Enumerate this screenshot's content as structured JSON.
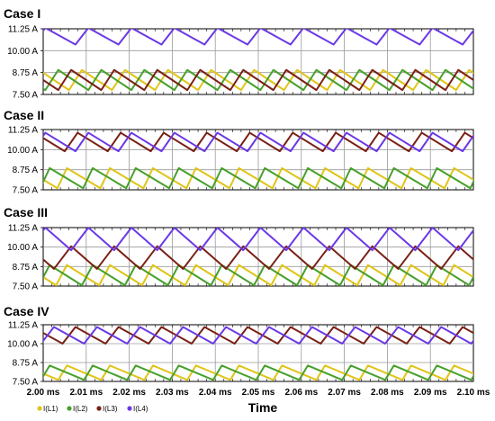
{
  "x_axis": {
    "label": "Time",
    "ticks": [
      "2.00 ms",
      "2.01 ms",
      "2.02 ms",
      "2.03 ms",
      "2.04 ms",
      "2.05 ms",
      "2.06 ms",
      "2.07 ms",
      "2.08 ms",
      "2.09 ms",
      "2.10 ms"
    ]
  },
  "legend": [
    {
      "label": "I(L1)",
      "color": "#e0c418"
    },
    {
      "label": "I(L2)",
      "color": "#46a02a"
    },
    {
      "label": "I(L3)",
      "color": "#7a1f14"
    },
    {
      "label": "I(L4)",
      "color": "#6a38e6"
    }
  ],
  "chart_data": [
    {
      "type": "line",
      "title": "Case I",
      "xlabel": "Time",
      "xunit": "ms",
      "xlim": [
        2.0,
        2.1
      ],
      "ylim": [
        7.5,
        11.25
      ],
      "yticks": [
        "11.25 A",
        "10.00 A",
        "8.75 A",
        "7.50 A"
      ],
      "ytick_values": [
        11.25,
        10.0,
        8.75,
        7.5
      ],
      "grid": true,
      "series": [
        {
          "name": "I(L1)",
          "color": "#e0c418",
          "period": 0.01,
          "min": 7.75,
          "max": 8.9,
          "peak_at": 0.009,
          "rise_frac": 0.3
        },
        {
          "name": "I(L2)",
          "color": "#46a02a",
          "period": 0.01,
          "min": 7.75,
          "max": 8.9,
          "peak_at": 0.0035,
          "rise_frac": 0.3
        },
        {
          "name": "I(L3)",
          "color": "#7a1f14",
          "period": 0.01,
          "min": 7.75,
          "max": 8.9,
          "peak_at": 0.0065,
          "rise_frac": 0.3
        },
        {
          "name": "I(L4)",
          "color": "#6a38e6",
          "period": 0.01,
          "min": 10.35,
          "max": 11.3,
          "peak_at": 0.0005,
          "rise_frac": 0.3
        }
      ]
    },
    {
      "type": "line",
      "title": "Case II",
      "xlabel": "Time",
      "xunit": "ms",
      "xlim": [
        2.0,
        2.1
      ],
      "ylim": [
        7.5,
        11.25
      ],
      "yticks": [
        "11.25 A",
        "10.00 A",
        "8.75 A",
        "7.50 A"
      ],
      "ytick_values": [
        11.25,
        10.0,
        8.75,
        7.5
      ],
      "grid": true,
      "series": [
        {
          "name": "I(L1)",
          "color": "#e0c418",
          "period": 0.01,
          "min": 7.6,
          "max": 8.85,
          "peak_at": 0.0055,
          "rise_frac": 0.22
        },
        {
          "name": "I(L2)",
          "color": "#46a02a",
          "period": 0.01,
          "min": 7.6,
          "max": 8.85,
          "peak_at": 0.0015,
          "rise_frac": 0.22
        },
        {
          "name": "I(L3)",
          "color": "#7a1f14",
          "period": 0.01,
          "min": 9.9,
          "max": 11.05,
          "peak_at": 0.008,
          "rise_frac": 0.3
        },
        {
          "name": "I(L4)",
          "color": "#6a38e6",
          "period": 0.01,
          "min": 9.9,
          "max": 11.05,
          "peak_at": 0.0005,
          "rise_frac": 0.3
        }
      ]
    },
    {
      "type": "line",
      "title": "Case III",
      "xlabel": "Time",
      "xunit": "ms",
      "xlim": [
        2.0,
        2.1
      ],
      "ylim": [
        7.5,
        11.25
      ],
      "yticks": [
        "11.25 A",
        "10.00 A",
        "8.75 A",
        "7.50 A"
      ],
      "ytick_values": [
        11.25,
        10.0,
        8.75,
        7.5
      ],
      "grid": true,
      "series": [
        {
          "name": "I(L1)",
          "color": "#e0c418",
          "period": 0.01,
          "min": 7.55,
          "max": 8.85,
          "peak_at": 0.0055,
          "rise_frac": 0.25
        },
        {
          "name": "I(L2)",
          "color": "#46a02a",
          "period": 0.01,
          "min": 7.55,
          "max": 8.85,
          "peak_at": 0.0015,
          "rise_frac": 0.25
        },
        {
          "name": "I(L3)",
          "color": "#7a1f14",
          "period": 0.01,
          "min": 8.6,
          "max": 10.05,
          "peak_at": 0.0065,
          "rise_frac": 0.4
        },
        {
          "name": "I(L4)",
          "color": "#6a38e6",
          "period": 0.01,
          "min": 9.8,
          "max": 11.25,
          "peak_at": 0.0005,
          "rise_frac": 0.4
        }
      ]
    },
    {
      "type": "line",
      "title": "Case IV",
      "xlabel": "Time",
      "xunit": "ms",
      "xlim": [
        2.0,
        2.1
      ],
      "ylim": [
        7.5,
        11.25
      ],
      "yticks": [
        "11.25 A",
        "10.00 A",
        "8.75 A",
        "7.50 A"
      ],
      "ytick_values": [
        11.25,
        10.0,
        8.75,
        7.5
      ],
      "grid": true,
      "series": [
        {
          "name": "I(L1)",
          "color": "#e0c418",
          "period": 0.01,
          "min": 7.6,
          "max": 8.55,
          "peak_at": 0.0055,
          "rise_frac": 0.2
        },
        {
          "name": "I(L2)",
          "color": "#46a02a",
          "period": 0.01,
          "min": 7.6,
          "max": 8.55,
          "peak_at": 0.0015,
          "rise_frac": 0.2
        },
        {
          "name": "I(L3)",
          "color": "#7a1f14",
          "period": 0.01,
          "min": 10.0,
          "max": 11.1,
          "peak_at": 0.0075,
          "rise_frac": 0.3
        },
        {
          "name": "I(L4)",
          "color": "#6a38e6",
          "period": 0.01,
          "min": 10.0,
          "max": 11.1,
          "peak_at": 0.0025,
          "rise_frac": 0.3
        }
      ]
    }
  ]
}
